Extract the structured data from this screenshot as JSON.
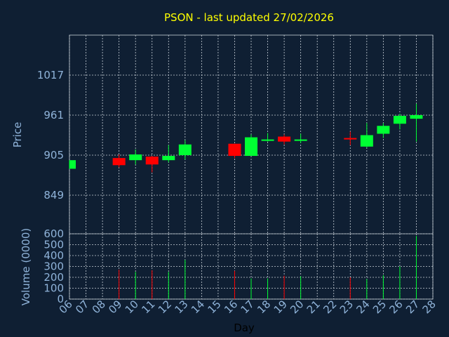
{
  "chart_data": {
    "type": "candlestick",
    "title": "PSON - last updated 27/02/2026",
    "x_label": "Day",
    "y_label": "Price",
    "y2_label": "Volume (0000)",
    "x": [
      6,
      9,
      10,
      11,
      12,
      13,
      16,
      17,
      18,
      19,
      20,
      23,
      24,
      25,
      26,
      27
    ],
    "open": [
      886,
      901,
      898,
      903,
      898,
      905,
      921,
      904,
      925,
      931,
      925,
      929,
      917,
      935,
      949,
      956
    ],
    "high": [
      898,
      906,
      913,
      904,
      919,
      926,
      921,
      934,
      936,
      934,
      935,
      938,
      950,
      950,
      963,
      977
    ],
    "low": [
      886,
      888,
      892,
      881,
      895,
      899,
      901,
      904,
      924,
      920,
      922,
      919,
      916,
      929,
      941,
      924
    ],
    "close": [
      898,
      891,
      906,
      892,
      904,
      920,
      904,
      930,
      927,
      924,
      927,
      927,
      933,
      946,
      960,
      961
    ],
    "volume": [
      null,
      270,
      250,
      265,
      250,
      360,
      260,
      190,
      190,
      215,
      210,
      200,
      185,
      220,
      300,
      580
    ],
    "up_color": "#00ff33",
    "down_color": "#ff0000",
    "xlim": [
      6,
      28
    ],
    "xticks": [
      {
        "value": 6,
        "label": "06"
      },
      {
        "value": 7,
        "label": "07"
      },
      {
        "value": 8,
        "label": "08"
      },
      {
        "value": 9,
        "label": "09"
      },
      10,
      11,
      12,
      13,
      14,
      15,
      16,
      17,
      18,
      19,
      20,
      21,
      22,
      23,
      24,
      25,
      26,
      27,
      28
    ],
    "ylim": [
      795,
      1073
    ],
    "yticks": [
      849,
      905,
      961,
      1017
    ],
    "y2lim": [
      0,
      600
    ],
    "y2ticks": [
      0,
      100,
      200,
      300,
      400,
      500,
      600
    ],
    "grid": true
  }
}
